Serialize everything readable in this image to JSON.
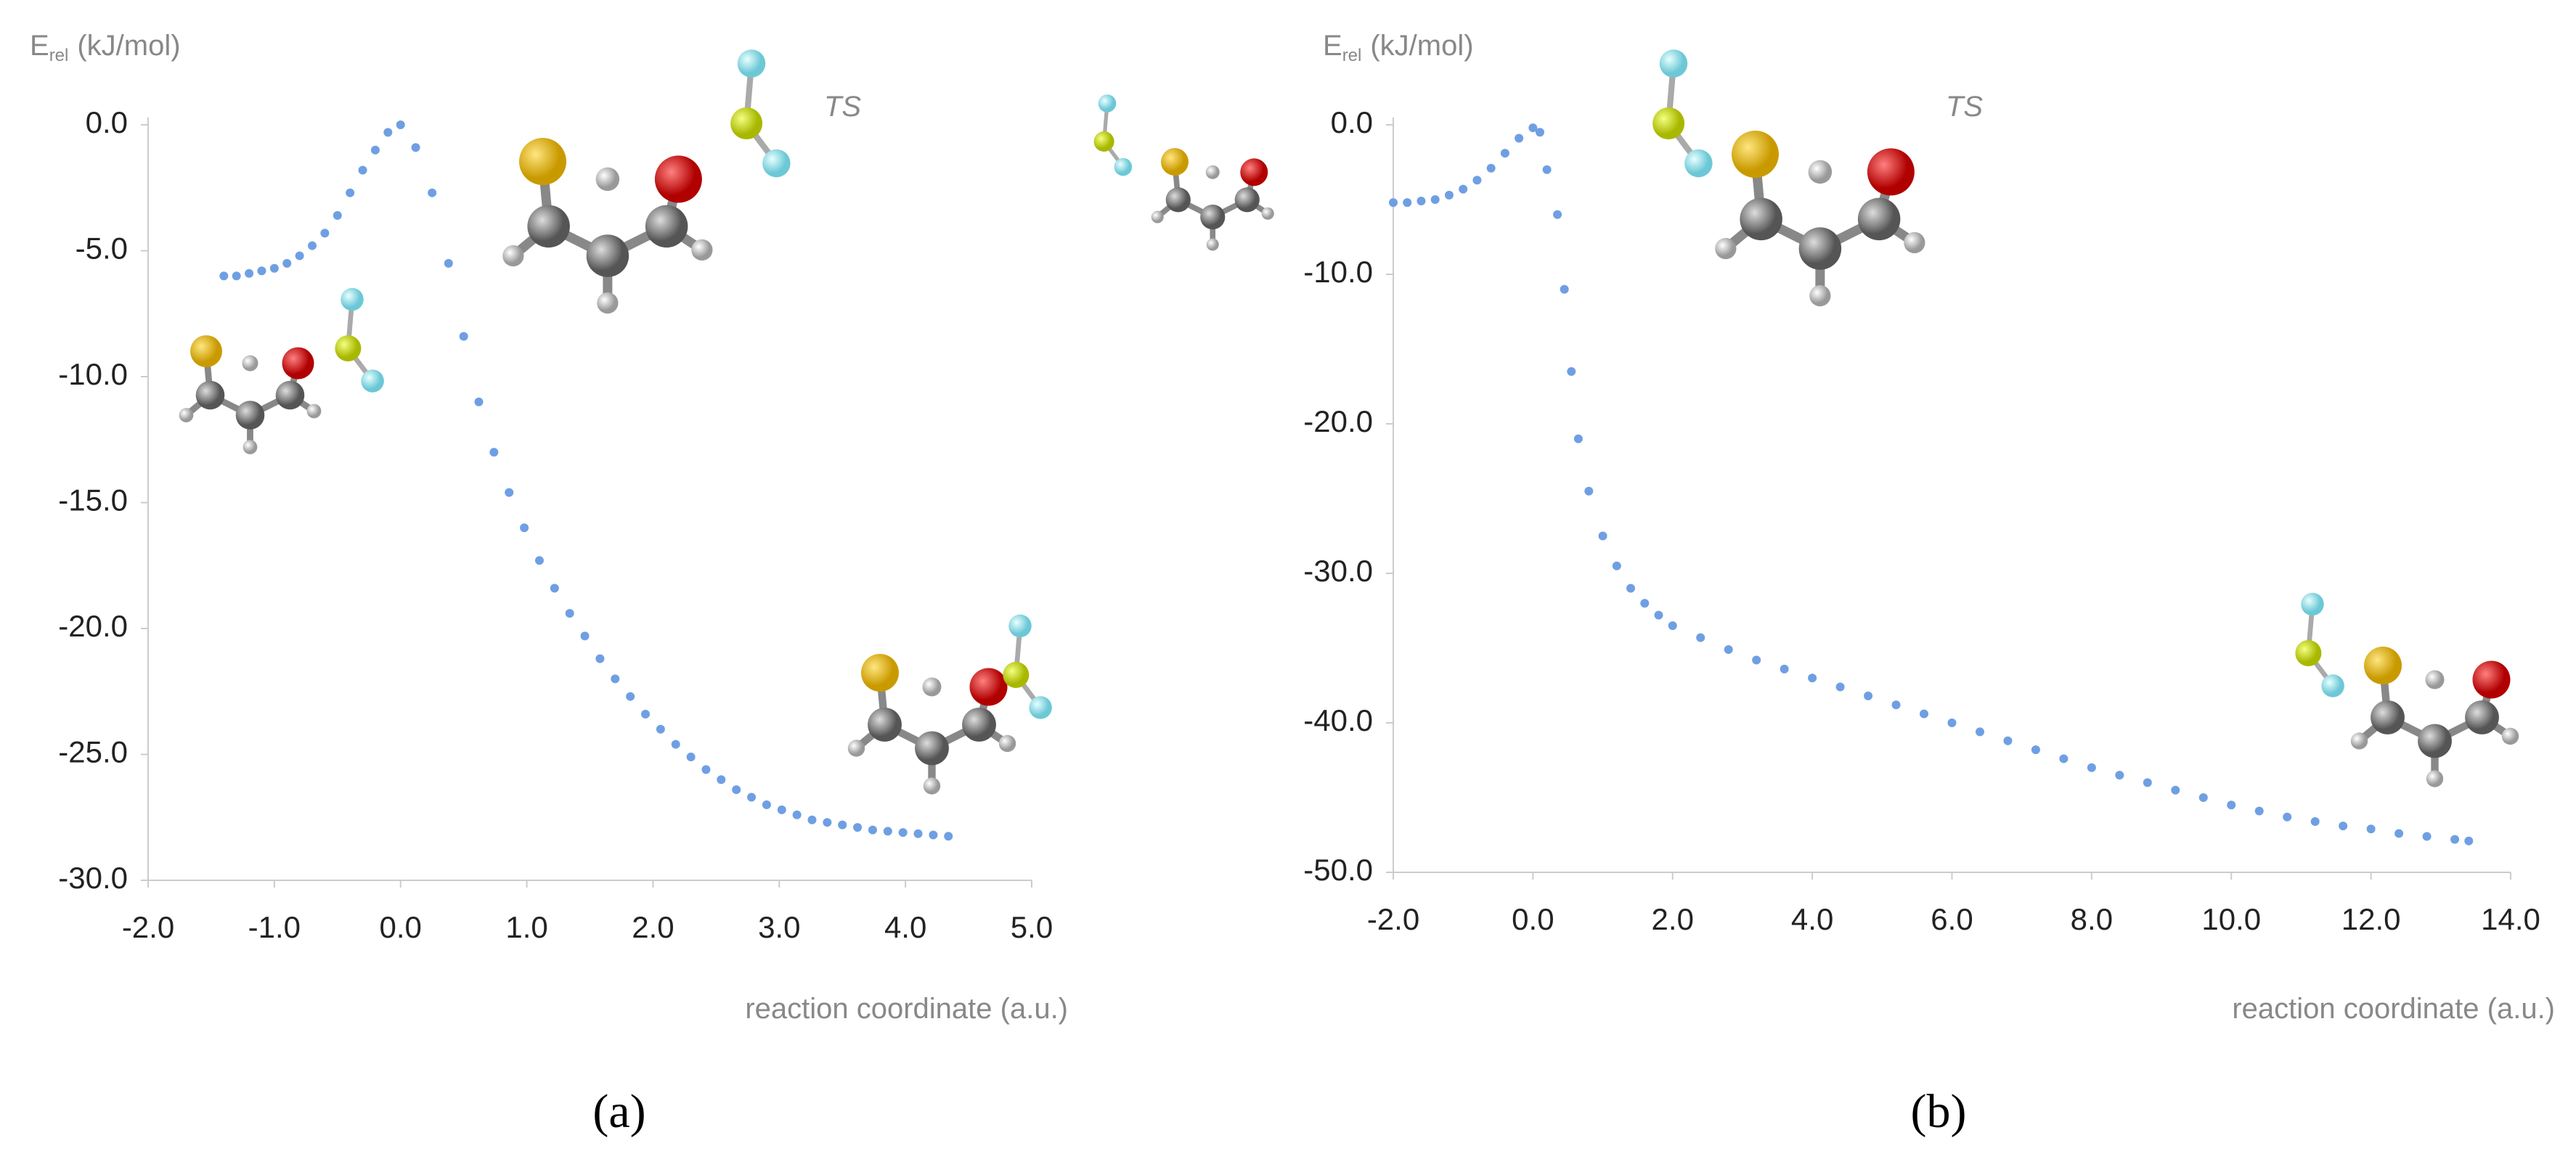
{
  "chart_data": [
    {
      "type": "scatter",
      "caption": "(a)",
      "annotation": "TS",
      "ylabel_symbol": "E",
      "ylabel_subscript": "rel",
      "ylabel_unit": "(kJ/mol)",
      "xlabel": "reaction coordinate (a.u.)",
      "color": "#6f9fe3",
      "xlim": [
        -2,
        5
      ],
      "ylim": [
        -30,
        0
      ],
      "xticks": [
        {
          "value": -2,
          "label": "-2.0"
        },
        {
          "value": -1,
          "label": "-1.0"
        },
        {
          "value": 0,
          "label": "0.0"
        },
        {
          "value": 1,
          "label": "1.0"
        },
        {
          "value": 2,
          "label": "2.0"
        },
        {
          "value": 3,
          "label": "3.0"
        },
        {
          "value": 4,
          "label": "4.0"
        },
        {
          "value": 5,
          "label": "5.0"
        }
      ],
      "yticks": [
        {
          "value": 0,
          "label": "0.0"
        },
        {
          "value": -5,
          "label": "-5.0"
        },
        {
          "value": -10,
          "label": "-10.0"
        },
        {
          "value": -15,
          "label": "-15.0"
        },
        {
          "value": -20,
          "label": "-20.0"
        },
        {
          "value": -25,
          "label": "-25.0"
        },
        {
          "value": -30,
          "label": "-30.0"
        }
      ],
      "x": [
        -1.4,
        -1.3,
        -1.2,
        -1.1,
        -1.0,
        -0.9,
        -0.8,
        -0.7,
        -0.6,
        -0.5,
        -0.4,
        -0.3,
        -0.2,
        -0.1,
        0.0,
        0.12,
        0.25,
        0.38,
        0.5,
        0.62,
        0.74,
        0.86,
        0.98,
        1.1,
        1.22,
        1.34,
        1.46,
        1.58,
        1.7,
        1.82,
        1.94,
        2.06,
        2.18,
        2.3,
        2.42,
        2.54,
        2.66,
        2.78,
        2.9,
        3.02,
        3.14,
        3.26,
        3.38,
        3.5,
        3.62,
        3.74,
        3.86,
        3.98,
        4.1,
        4.22,
        4.34
      ],
      "values": [
        -6.0,
        -6.0,
        -5.9,
        -5.8,
        -5.7,
        -5.5,
        -5.2,
        -4.8,
        -4.3,
        -3.6,
        -2.7,
        -1.8,
        -1.0,
        -0.3,
        0.0,
        -0.9,
        -2.7,
        -5.5,
        -8.4,
        -11.0,
        -13.0,
        -14.6,
        -16.0,
        -17.3,
        -18.4,
        -19.4,
        -20.3,
        -21.2,
        -22.0,
        -22.7,
        -23.4,
        -24.0,
        -24.6,
        -25.1,
        -25.6,
        -26.0,
        -26.4,
        -26.7,
        -27.0,
        -27.2,
        -27.4,
        -27.6,
        -27.7,
        -27.8,
        -27.9,
        -28.0,
        -28.05,
        -28.1,
        -28.15,
        -28.2,
        -28.25
      ]
    },
    {
      "type": "scatter",
      "caption": "(b)",
      "annotation": "TS",
      "ylabel_symbol": "E",
      "ylabel_subscript": "rel",
      "ylabel_unit": "(kJ/mol)",
      "xlabel": "reaction coordinate (a.u.)",
      "color": "#6f9fe3",
      "xlim": [
        -2,
        14
      ],
      "ylim": [
        -50,
        0
      ],
      "xticks": [
        {
          "value": -2,
          "label": "-2.0"
        },
        {
          "value": 0,
          "label": "0.0"
        },
        {
          "value": 2,
          "label": "2.0"
        },
        {
          "value": 4,
          "label": "4.0"
        },
        {
          "value": 6,
          "label": "6.0"
        },
        {
          "value": 8,
          "label": "8.0"
        },
        {
          "value": 10,
          "label": "10.0"
        },
        {
          "value": 12,
          "label": "12.0"
        },
        {
          "value": 14,
          "label": "14.0"
        }
      ],
      "yticks": [
        {
          "value": 0,
          "label": "0.0"
        },
        {
          "value": -10,
          "label": "-10.0"
        },
        {
          "value": -20,
          "label": "-20.0"
        },
        {
          "value": -30,
          "label": "-30.0"
        },
        {
          "value": -40,
          "label": "-40.0"
        },
        {
          "value": -50,
          "label": "-50.0"
        }
      ],
      "x": [
        -2.0,
        -1.8,
        -1.6,
        -1.4,
        -1.2,
        -1.0,
        -0.8,
        -0.6,
        -0.4,
        -0.2,
        0.0,
        0.1,
        0.2,
        0.35,
        0.45,
        0.55,
        0.65,
        0.8,
        1.0,
        1.2,
        1.4,
        1.6,
        1.8,
        2.0,
        2.4,
        2.8,
        3.2,
        3.6,
        4.0,
        4.4,
        4.8,
        5.2,
        5.6,
        6.0,
        6.4,
        6.8,
        7.2,
        7.6,
        8.0,
        8.4,
        8.8,
        9.2,
        9.6,
        10.0,
        10.4,
        10.8,
        11.2,
        11.6,
        12.0,
        12.4,
        12.8,
        13.2,
        13.4
      ],
      "values": [
        -5.2,
        -5.2,
        -5.1,
        -5.0,
        -4.7,
        -4.3,
        -3.7,
        -2.9,
        -1.9,
        -0.9,
        -0.2,
        -0.5,
        -3.0,
        -6.0,
        -11.0,
        -16.5,
        -21.0,
        -24.5,
        -27.5,
        -29.5,
        -31.0,
        -32.0,
        -32.8,
        -33.5,
        -34.3,
        -35.1,
        -35.8,
        -36.4,
        -37.0,
        -37.6,
        -38.2,
        -38.8,
        -39.4,
        -40.0,
        -40.6,
        -41.2,
        -41.8,
        -42.4,
        -43.0,
        -43.5,
        -44.0,
        -44.5,
        -45.0,
        -45.5,
        -45.9,
        -46.3,
        -46.6,
        -46.9,
        -47.1,
        -47.4,
        -47.6,
        -47.8,
        -47.9
      ]
    }
  ]
}
